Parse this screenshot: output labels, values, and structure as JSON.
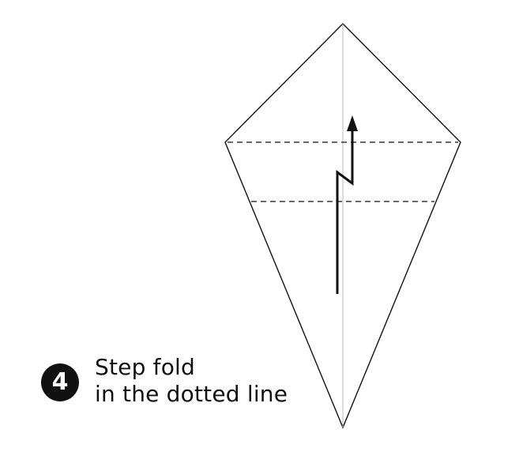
{
  "step": {
    "number": "4",
    "instruction_line1": "Step fold",
    "instruction_line2": "in the dotted line"
  },
  "colors": {
    "outline": "#111111",
    "center_crease": "#bbbbbb",
    "badge_background": "#111111",
    "badge_text": "#ffffff"
  }
}
